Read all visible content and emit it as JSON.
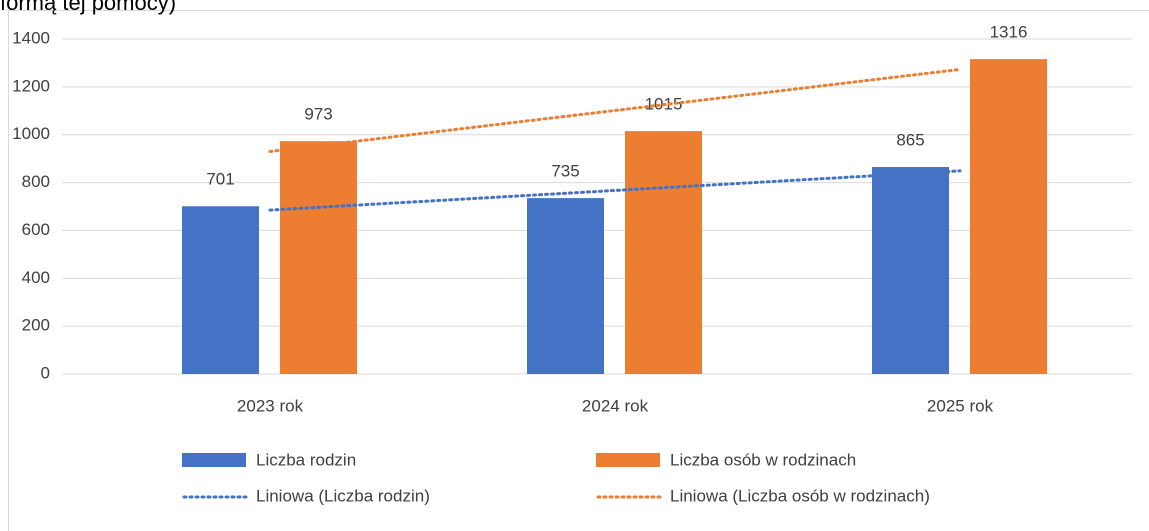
{
  "header_text": "formą tej pomocy)",
  "chart_data": {
    "type": "bar",
    "categories": [
      "2023 rok",
      "2024 rok",
      "2025 rok"
    ],
    "series": [
      {
        "name": "Liczba rodzin",
        "color": "#4472c4",
        "values": [
          701,
          735,
          865
        ]
      },
      {
        "name": "Liczba osób w rodzinach",
        "color": "#ed7d31",
        "values": [
          973,
          1015,
          1316
        ]
      }
    ],
    "trendlines": [
      {
        "name": "Liniowa (Liczba rodzin)",
        "series": 0,
        "kind": "linear",
        "color": "#4472c4"
      },
      {
        "name": "Liniowa (Liczba osób w rodzinach)",
        "series": 1,
        "kind": "linear",
        "color": "#ed7d31"
      }
    ],
    "ylim": [
      0,
      1400
    ],
    "yticks": [
      0,
      200,
      400,
      600,
      800,
      1000,
      1200,
      1400
    ],
    "grid": true,
    "legend": "bottom"
  }
}
